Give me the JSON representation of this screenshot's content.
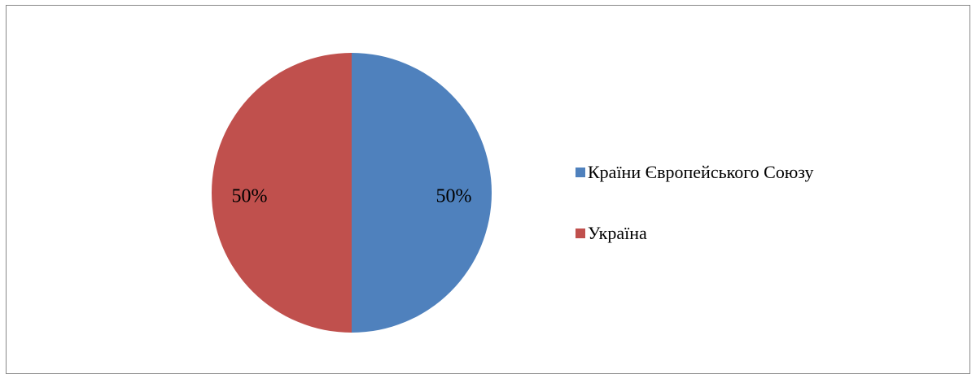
{
  "chart_data": {
    "type": "pie",
    "categories": [
      "Країни Європейського Союзу",
      "Україна"
    ],
    "values": [
      50,
      50
    ],
    "value_labels": [
      "50%",
      "50%"
    ],
    "colors": [
      "#4f81bd",
      "#c0504d"
    ],
    "legend": "right"
  }
}
